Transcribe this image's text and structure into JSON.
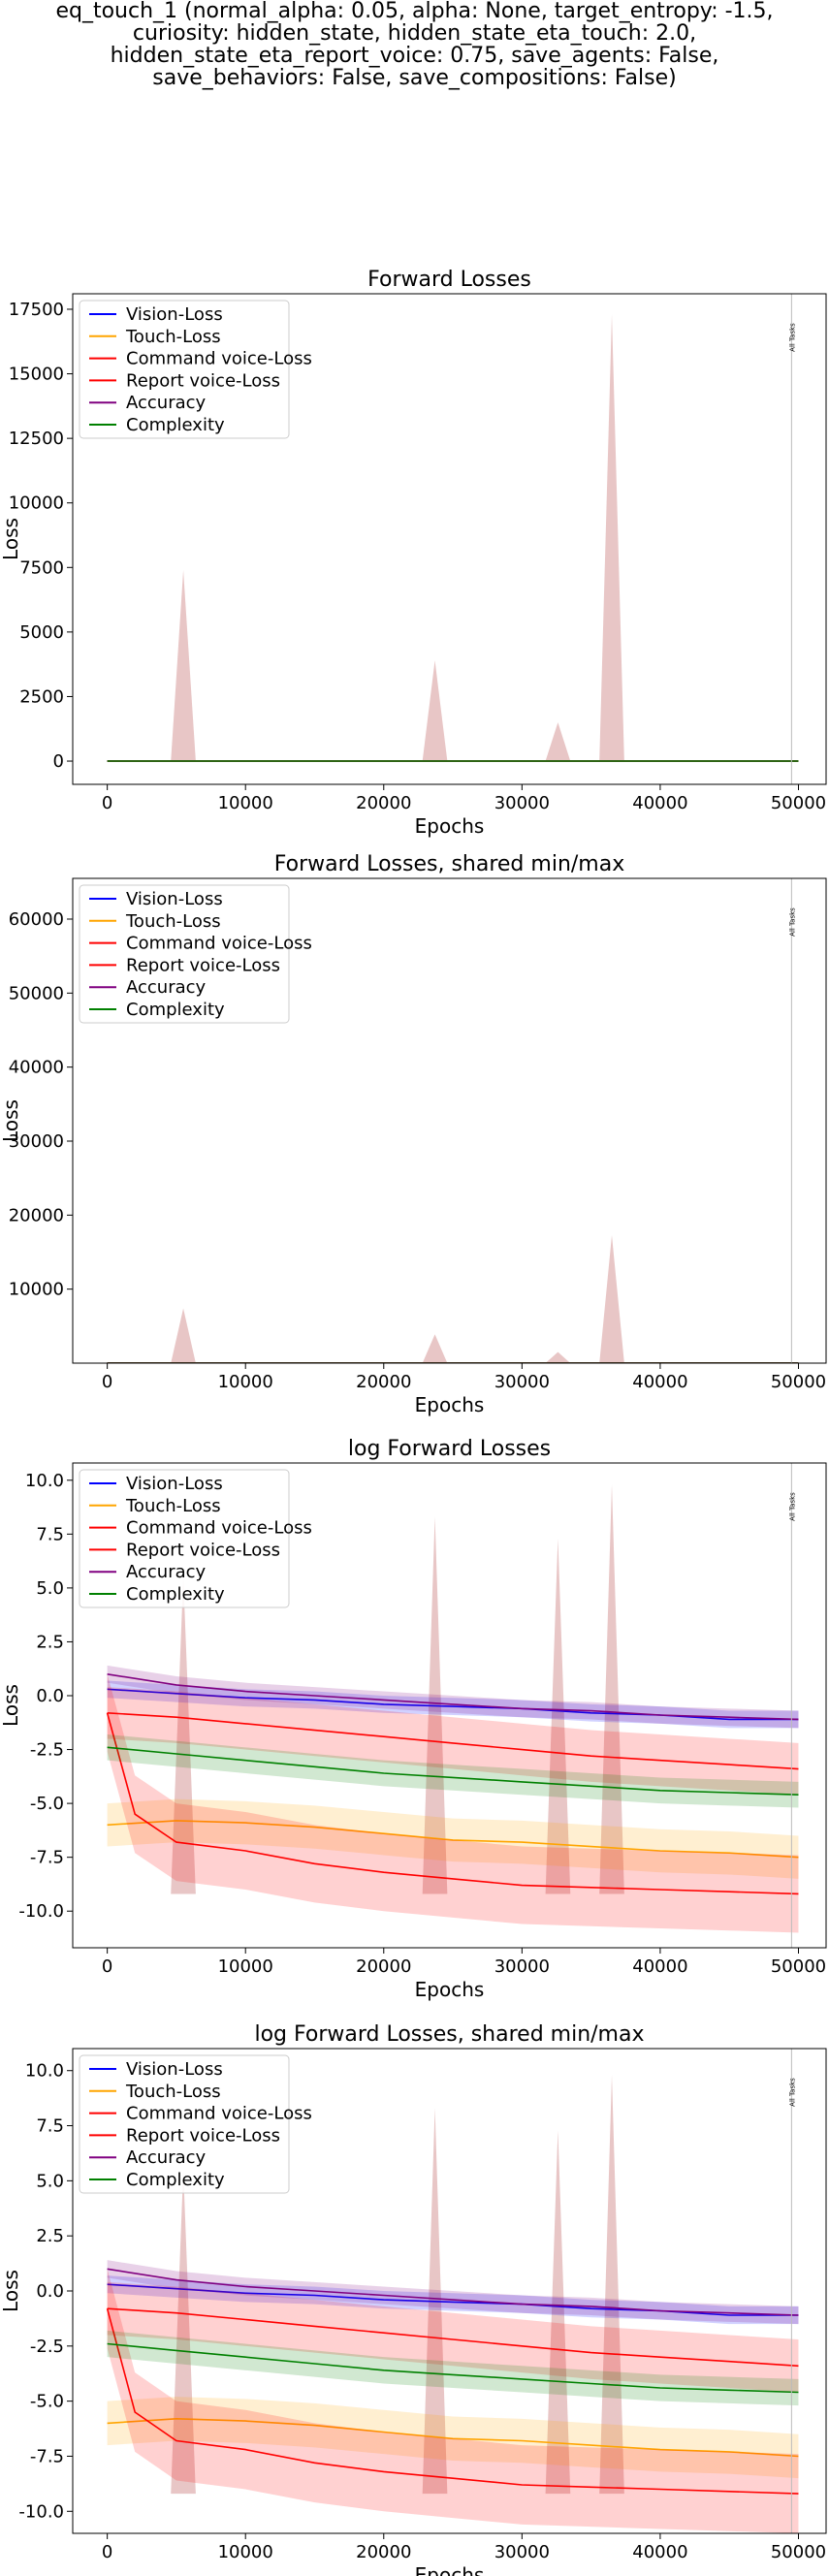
{
  "figure": {
    "suptitle_lines": [
      "eq_touch_1 (normal_alpha: 0.05, alpha: None, target_entropy: -1.5,",
      "curiosity: hidden_state, hidden_state_eta_touch: 2.0,",
      "hidden_state_eta_report_voice: 0.75, save_agents: False,",
      "save_behaviors: False, save_compositions: False)"
    ]
  },
  "legend": [
    {
      "name": "Vision-Loss",
      "color": "#0000ff"
    },
    {
      "name": "Touch-Loss",
      "color": "#ffa500"
    },
    {
      "name": "Command voice-Loss",
      "color": "#ff0000"
    },
    {
      "name": "Report voice-Loss",
      "color": "#ff0000"
    },
    {
      "name": "Accuracy",
      "color": "#800080"
    },
    {
      "name": "Complexity",
      "color": "#008000"
    }
  ],
  "colors": {
    "vision": "#0000ff",
    "touch": "#ffa500",
    "command": "#ff0000",
    "report": "#ff0000",
    "accuracy": "#800080",
    "complexity": "#008000",
    "spike": "#d8a0a0",
    "vline": "#bbbbbb"
  },
  "marker": {
    "label": "All Tasks",
    "x": 49500
  },
  "chart_data": [
    {
      "type": "area",
      "title": "Forward Losses",
      "xlabel": "Epochs",
      "ylabel": "Loss",
      "xlim": [
        -2500,
        52000
      ],
      "ylim": [
        -900,
        18100
      ],
      "xticks": [
        0,
        10000,
        20000,
        30000,
        40000,
        50000
      ],
      "yticks": [
        0,
        2500,
        5000,
        7500,
        10000,
        12500,
        15000,
        17500
      ],
      "legend_loc": "upper left",
      "spikes": [
        [
          5500,
          7400
        ],
        [
          23700,
          3900
        ],
        [
          32600,
          1500
        ],
        [
          36500,
          17300
        ]
      ],
      "series": [
        {
          "name": "Vision-Loss",
          "values": [
            1.3,
            1.1,
            0.9,
            0.7,
            0.6,
            0.5,
            0.4,
            0.4,
            0.3,
            0.3,
            0.3
          ]
        },
        {
          "name": "Touch-Loss",
          "values": [
            0.003,
            0.002,
            0.002,
            0.002,
            0.001,
            0.001,
            0.001,
            0.001,
            0.001,
            0.001,
            0.001
          ]
        },
        {
          "name": "Command voice-Loss",
          "values": [
            0.4,
            0.3,
            0.2,
            0.15,
            0.12,
            0.1,
            0.08,
            0.06,
            0.05,
            0.05,
            0.05
          ]
        },
        {
          "name": "Report voice-Loss",
          "values": [
            0.4,
            0.01,
            0.003,
            0.002,
            0.001,
            0.001,
            0.001,
            0.001,
            0.001,
            0.001,
            0.001
          ]
        },
        {
          "name": "Accuracy",
          "values": [
            1.6,
            1.4,
            1.2,
            1.0,
            0.8,
            0.7,
            0.6,
            0.5,
            0.4,
            0.4,
            0.35
          ]
        },
        {
          "name": "Complexity",
          "values": [
            0.08,
            0.05,
            0.04,
            0.03,
            0.025,
            0.02,
            0.02,
            0.015,
            0.012,
            0.01,
            0.01
          ]
        }
      ]
    },
    {
      "type": "area",
      "title": "Forward Losses, shared min/max",
      "xlabel": "Epochs",
      "ylabel": "Loss",
      "xlim": [
        -2500,
        52000
      ],
      "ylim": [
        0,
        65500
      ],
      "xticks": [
        0,
        10000,
        20000,
        30000,
        40000,
        50000
      ],
      "yticks": [
        10000,
        20000,
        30000,
        40000,
        50000,
        60000
      ],
      "legend_loc": "upper left",
      "spikes": [
        [
          5500,
          7400
        ],
        [
          23700,
          3900
        ],
        [
          32600,
          1500
        ],
        [
          36500,
          17300
        ]
      ],
      "series": [
        {
          "name": "Vision-Loss",
          "values": [
            1.3,
            1.1,
            0.9,
            0.7,
            0.6,
            0.5,
            0.4,
            0.4,
            0.3,
            0.3,
            0.3
          ]
        },
        {
          "name": "Touch-Loss",
          "values": [
            0.003,
            0.002,
            0.002,
            0.002,
            0.001,
            0.001,
            0.001,
            0.001,
            0.001,
            0.001,
            0.001
          ]
        },
        {
          "name": "Command voice-Loss",
          "values": [
            0.4,
            0.3,
            0.2,
            0.15,
            0.12,
            0.1,
            0.08,
            0.06,
            0.05,
            0.05,
            0.05
          ]
        },
        {
          "name": "Report voice-Loss",
          "values": [
            0.4,
            0.01,
            0.003,
            0.002,
            0.001,
            0.001,
            0.001,
            0.001,
            0.001,
            0.001,
            0.001
          ]
        },
        {
          "name": "Accuracy",
          "values": [
            1.6,
            1.4,
            1.2,
            1.0,
            0.8,
            0.7,
            0.6,
            0.5,
            0.4,
            0.4,
            0.35
          ]
        },
        {
          "name": "Complexity",
          "values": [
            0.08,
            0.05,
            0.04,
            0.03,
            0.025,
            0.02,
            0.02,
            0.015,
            0.012,
            0.01,
            0.01
          ]
        }
      ]
    },
    {
      "type": "line",
      "title": "log Forward Losses",
      "xlabel": "Epochs",
      "ylabel": "Loss",
      "xlim": [
        -2500,
        52000
      ],
      "ylim": [
        -11.7,
        10.8
      ],
      "xticks": [
        0,
        10000,
        20000,
        30000,
        40000,
        50000
      ],
      "yticks": [
        -10.0,
        -7.5,
        -5.0,
        -2.5,
        0.0,
        2.5,
        5.0,
        7.5,
        10.0
      ],
      "legend_loc": "upper left",
      "spikes": [
        [
          5500,
          5.5
        ],
        [
          23700,
          8.3
        ],
        [
          32600,
          7.3
        ],
        [
          36500,
          9.8
        ]
      ],
      "series": [
        {
          "name": "Vision-Loss",
          "x": [
            0,
            5000,
            10000,
            15000,
            20000,
            25000,
            30000,
            35000,
            40000,
            45000,
            50000
          ],
          "values": [
            0.3,
            0.1,
            -0.1,
            -0.2,
            -0.4,
            -0.5,
            -0.6,
            -0.8,
            -0.9,
            -1.1,
            -1.1
          ],
          "spread": 0.4
        },
        {
          "name": "Touch-Loss",
          "x": [
            0,
            5000,
            10000,
            15000,
            20000,
            25000,
            30000,
            35000,
            40000,
            45000,
            50000
          ],
          "values": [
            -6.0,
            -5.8,
            -5.9,
            -6.1,
            -6.4,
            -6.7,
            -6.8,
            -7.0,
            -7.2,
            -7.3,
            -7.5
          ],
          "spread": 1.0
        },
        {
          "name": "Command voice-Loss",
          "x": [
            0,
            5000,
            10000,
            15000,
            20000,
            25000,
            30000,
            35000,
            40000,
            45000,
            50000
          ],
          "values": [
            -0.8,
            -1.0,
            -1.3,
            -1.6,
            -1.9,
            -2.2,
            -2.5,
            -2.8,
            -3.0,
            -3.2,
            -3.4
          ],
          "spread": 1.2
        },
        {
          "name": "Report voice-Loss",
          "x": [
            0,
            2000,
            5000,
            10000,
            15000,
            20000,
            25000,
            30000,
            35000,
            40000,
            45000,
            50000
          ],
          "values": [
            -0.8,
            -5.5,
            -6.8,
            -7.2,
            -7.8,
            -8.2,
            -8.5,
            -8.8,
            -8.9,
            -9.0,
            -9.1,
            -9.2
          ],
          "spread": 1.8
        },
        {
          "name": "Accuracy",
          "x": [
            0,
            5000,
            10000,
            15000,
            20000,
            25000,
            30000,
            35000,
            40000,
            45000,
            50000
          ],
          "values": [
            1.0,
            0.5,
            0.2,
            0.0,
            -0.2,
            -0.4,
            -0.6,
            -0.7,
            -0.9,
            -1.0,
            -1.1
          ],
          "spread": 0.4
        },
        {
          "name": "Complexity",
          "x": [
            0,
            5000,
            10000,
            15000,
            20000,
            25000,
            30000,
            35000,
            40000,
            45000,
            50000
          ],
          "values": [
            -2.4,
            -2.7,
            -3.0,
            -3.3,
            -3.6,
            -3.8,
            -4.0,
            -4.2,
            -4.4,
            -4.5,
            -4.6
          ],
          "spread": 0.6
        }
      ]
    },
    {
      "type": "line",
      "title": "log Forward Losses, shared min/max",
      "xlabel": "Epochs",
      "ylabel": "Loss",
      "xlim": [
        -2500,
        52000
      ],
      "ylim": [
        -11.0,
        11.0
      ],
      "xticks": [
        0,
        10000,
        20000,
        30000,
        40000,
        50000
      ],
      "yticks": [
        -10.0,
        -7.5,
        -5.0,
        -2.5,
        0.0,
        2.5,
        5.0,
        7.5,
        10.0
      ],
      "legend_loc": "upper left",
      "spikes": [
        [
          5500,
          5.5
        ],
        [
          23700,
          8.3
        ],
        [
          32600,
          7.3
        ],
        [
          36500,
          9.8
        ]
      ],
      "series": [
        {
          "name": "Vision-Loss",
          "x": [
            0,
            5000,
            10000,
            15000,
            20000,
            25000,
            30000,
            35000,
            40000,
            45000,
            50000
          ],
          "values": [
            0.3,
            0.1,
            -0.1,
            -0.2,
            -0.4,
            -0.5,
            -0.6,
            -0.8,
            -0.9,
            -1.1,
            -1.1
          ],
          "spread": 0.4
        },
        {
          "name": "Touch-Loss",
          "x": [
            0,
            5000,
            10000,
            15000,
            20000,
            25000,
            30000,
            35000,
            40000,
            45000,
            50000
          ],
          "values": [
            -6.0,
            -5.8,
            -5.9,
            -6.1,
            -6.4,
            -6.7,
            -6.8,
            -7.0,
            -7.2,
            -7.3,
            -7.5
          ],
          "spread": 1.0
        },
        {
          "name": "Command voice-Loss",
          "x": [
            0,
            5000,
            10000,
            15000,
            20000,
            25000,
            30000,
            35000,
            40000,
            45000,
            50000
          ],
          "values": [
            -0.8,
            -1.0,
            -1.3,
            -1.6,
            -1.9,
            -2.2,
            -2.5,
            -2.8,
            -3.0,
            -3.2,
            -3.4
          ],
          "spread": 1.2
        },
        {
          "name": "Report voice-Loss",
          "x": [
            0,
            2000,
            5000,
            10000,
            15000,
            20000,
            25000,
            30000,
            35000,
            40000,
            45000,
            50000
          ],
          "values": [
            -0.8,
            -5.5,
            -6.8,
            -7.2,
            -7.8,
            -8.2,
            -8.5,
            -8.8,
            -8.9,
            -9.0,
            -9.1,
            -9.2
          ],
          "spread": 1.8
        },
        {
          "name": "Accuracy",
          "x": [
            0,
            5000,
            10000,
            15000,
            20000,
            25000,
            30000,
            35000,
            40000,
            45000,
            50000
          ],
          "values": [
            1.0,
            0.5,
            0.2,
            0.0,
            -0.2,
            -0.4,
            -0.6,
            -0.7,
            -0.9,
            -1.0,
            -1.1
          ],
          "spread": 0.4
        },
        {
          "name": "Complexity",
          "x": [
            0,
            5000,
            10000,
            15000,
            20000,
            25000,
            30000,
            35000,
            40000,
            45000,
            50000
          ],
          "values": [
            -2.4,
            -2.7,
            -3.0,
            -3.3,
            -3.6,
            -3.8,
            -4.0,
            -4.2,
            -4.4,
            -4.5,
            -4.6
          ],
          "spread": 0.6
        }
      ]
    }
  ]
}
